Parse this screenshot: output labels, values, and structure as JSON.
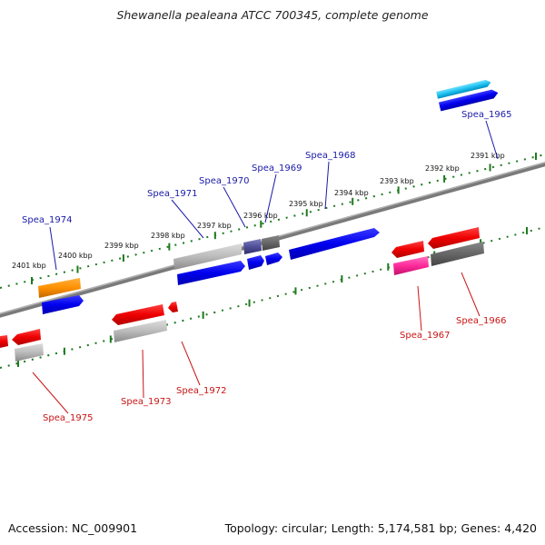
{
  "title": "Shewanella pealeana ATCC 700345, complete genome",
  "footer": {
    "accession": "Accession: NC_009901",
    "summary": "Topology: circular; Length: 5,174,581 bp; Genes: 4,420"
  },
  "colors": {
    "label_forward": "#1a1aa8",
    "label_reverse": "#c81414",
    "backbone": "#7a7a7a",
    "ticks": "#1e7a1e"
  },
  "ticks": [
    "2401 kbp",
    "2400 kbp",
    "2399 kbp",
    "2398 kbp",
    "2397 kbp",
    "2396 kbp",
    "2395 kbp",
    "2394 kbp",
    "2393 kbp",
    "2392 kbp",
    "2391 kbp"
  ],
  "genes_forward": [
    {
      "label": "Spea_1974",
      "color": "#1a1aa8"
    },
    {
      "label": "Spea_1971",
      "color": "#1a1aa8"
    },
    {
      "label": "Spea_1970",
      "color": "#1a1aa8"
    },
    {
      "label": "Spea_1969",
      "color": "#1a1aa8"
    },
    {
      "label": "Spea_1968",
      "color": "#1a1aa8"
    },
    {
      "label": "Spea_1965",
      "color": "#1a1aa8"
    }
  ],
  "genes_reverse": [
    {
      "label": "Spea_1975",
      "color": "#c81414"
    },
    {
      "label": "Spea_1973",
      "color": "#c81414"
    },
    {
      "label": "Spea_1972",
      "color": "#c81414"
    },
    {
      "label": "Spea_1967",
      "color": "#c81414"
    },
    {
      "label": "Spea_1966",
      "color": "#c81414"
    }
  ]
}
